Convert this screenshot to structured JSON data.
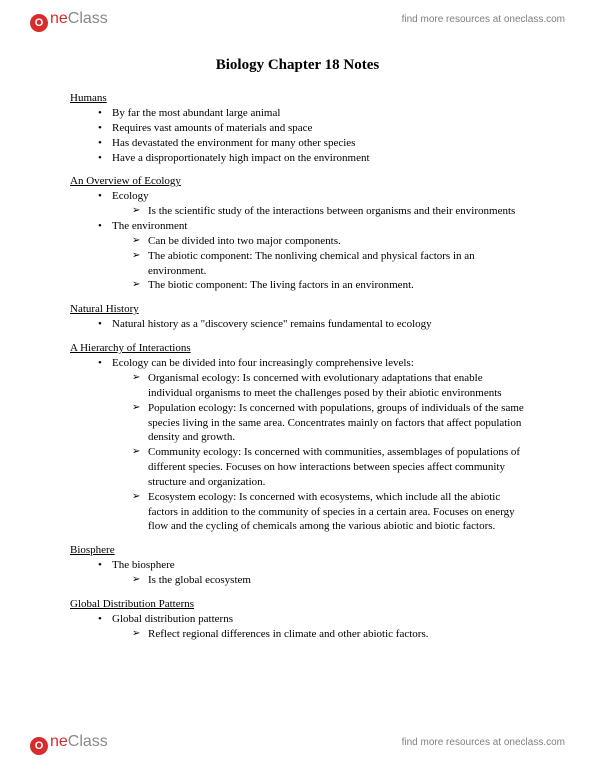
{
  "header": {
    "logo_one": "ne",
    "logo_class": "Class",
    "link_text": "find more resources at oneclass.com"
  },
  "title": "Biology Chapter 18 Notes",
  "sections": {
    "humans": {
      "heading": "Humans",
      "items": [
        "By far the most abundant large animal",
        "Requires vast amounts of materials and space",
        "Has devastated the environment for many other species",
        "Have a disproportionately high impact on the environment"
      ]
    },
    "ecology_overview": {
      "heading": "An Overview of Ecology",
      "b1": "Ecology",
      "b1_sub": "Is the scientific study of the interactions between organisms and their environments",
      "b2": "The environment",
      "b2_sub1": "Can be divided into two major components.",
      "b2_sub2": "The abiotic component: The nonliving chemical and physical factors in an environment.",
      "b2_sub3": "The biotic component: The living factors in an environment."
    },
    "natural_history": {
      "heading": "Natural History",
      "item": "Natural history as a \"discovery science\" remains fundamental to ecology"
    },
    "hierarchy": {
      "heading": "A Hierarchy of Interactions",
      "intro": "Ecology can be divided into four increasingly comprehensive levels:",
      "levels": [
        "Organismal ecology: Is concerned with evolutionary adaptations that enable individual organisms to meet the challenges posed by their abiotic environments",
        "Population ecology: Is concerned with populations, groups of individuals of the same species living in the same area. Concentrates mainly on factors that affect population density and growth.",
        "Community ecology: Is concerned with communities, assemblages of populations of different species. Focuses on how interactions between species affect community structure and organization.",
        "Ecosystem ecology: Is concerned with ecosystems, which include all the abiotic factors in addition to the community of species in a certain area. Focuses on energy flow and the cycling of chemicals among the various abiotic and biotic factors."
      ]
    },
    "biosphere": {
      "heading": "Biosphere",
      "item": "The biosphere",
      "sub": "Is the global ecosystem"
    },
    "global": {
      "heading": "Global Distribution Patterns",
      "item": "Global distribution patterns",
      "sub": "Reflect regional differences in climate and other abiotic factors."
    }
  }
}
